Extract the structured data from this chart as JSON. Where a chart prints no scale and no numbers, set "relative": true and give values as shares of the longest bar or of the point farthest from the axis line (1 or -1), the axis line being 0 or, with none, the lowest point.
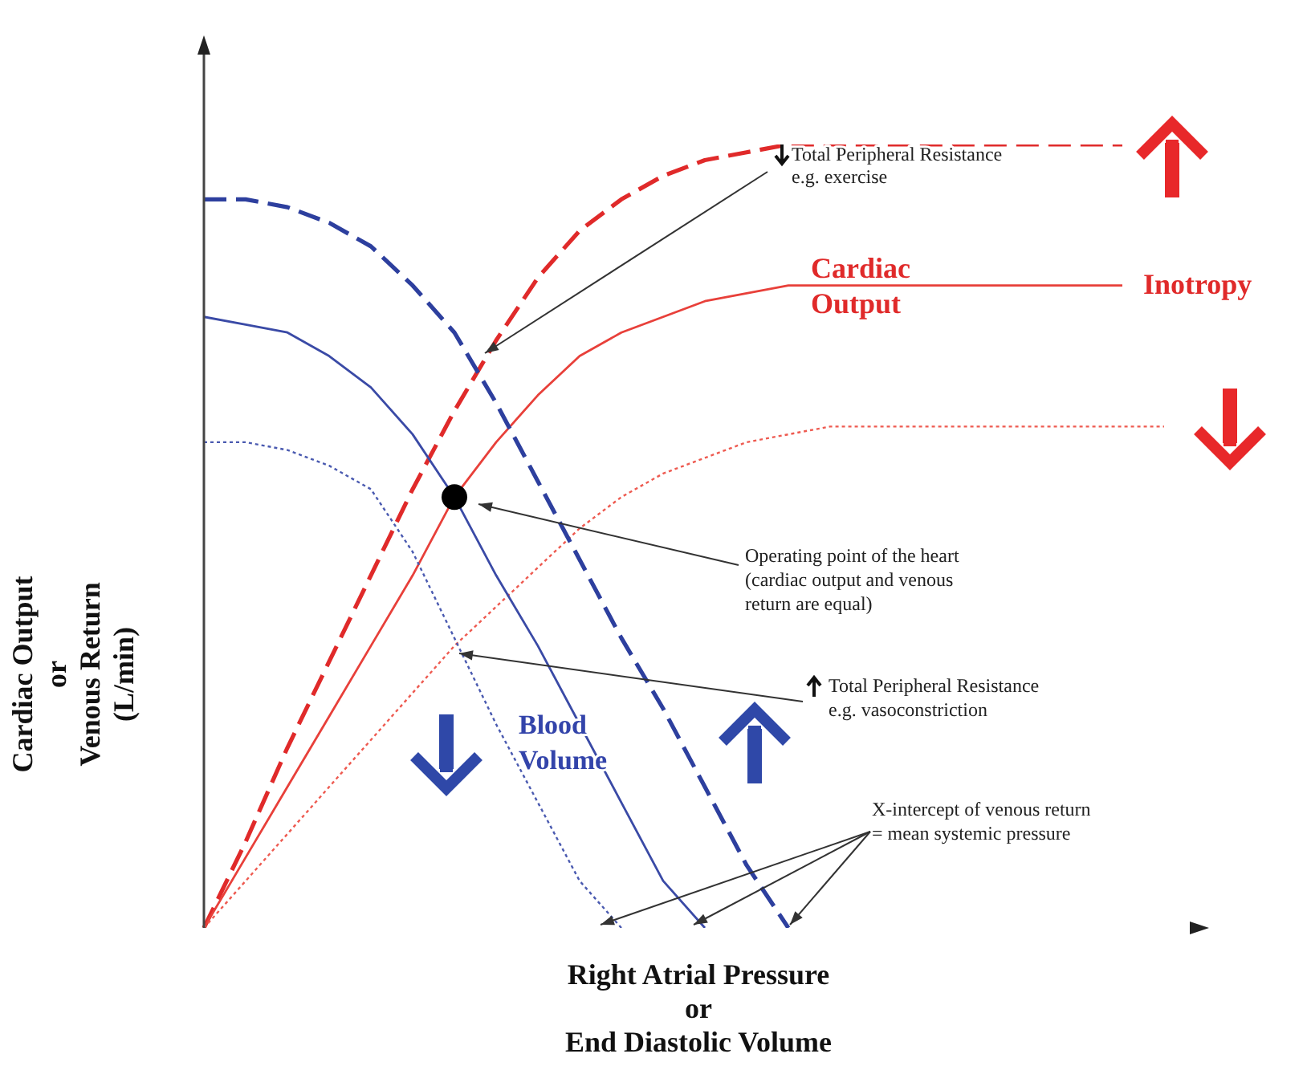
{
  "chart_data": {
    "type": "line",
    "relative": true,
    "xlabel": "Right Atrial Pressure\nor\nEnd Diastolic Volume",
    "ylabel": "Cardiac Output\nor\nVenous Return\n(L/min)",
    "categories": [
      null,
      null,
      null,
      null,
      null,
      null,
      null,
      null,
      null,
      null,
      null,
      null,
      null,
      null,
      null,
      null,
      null,
      null,
      null,
      null,
      null,
      null,
      null,
      null
    ],
    "series": [
      {
        "color": "#e02a2a",
        "line_style": "dashed",
        "values": [
          0,
          0.11,
          0.23,
          0.34,
          0.45,
          0.56,
          0.66,
          0.75,
          0.83,
          0.89,
          0.93,
          0.96,
          0.98,
          0.99,
          1,
          1,
          1,
          1,
          1,
          1,
          1,
          1,
          1,
          null
        ]
      },
      {
        "color": "#e8403a",
        "line_style": "solid",
        "values": [
          0,
          0.09,
          0.18,
          0.27,
          0.36,
          0.45,
          0.55,
          0.62,
          0.68,
          0.73,
          0.76,
          0.78,
          0.8,
          0.81,
          0.82,
          0.82,
          0.82,
          0.82,
          0.82,
          0.82,
          0.82,
          0.82,
          0.82,
          null
        ]
      },
      {
        "color": "#ee5a50",
        "line_style": "dotted",
        "values": [
          0,
          0.06,
          0.12,
          0.18,
          0.24,
          0.3,
          0.36,
          0.41,
          0.46,
          0.51,
          0.55,
          0.58,
          0.6,
          0.62,
          0.63,
          0.64,
          0.64,
          0.64,
          0.64,
          0.64,
          0.64,
          0.64,
          0.64,
          0.64
        ]
      },
      {
        "color": "#2d3f9e",
        "line_style": "dashed",
        "values": [
          0.93,
          0.93,
          0.92,
          0.9,
          0.87,
          0.82,
          0.76,
          0.67,
          0.57,
          0.47,
          0.37,
          0.28,
          0.18,
          0.08,
          0,
          null,
          null,
          null,
          null,
          null,
          null,
          null,
          null,
          null
        ]
      },
      {
        "color": "#3a4aa6",
        "line_style": "solid",
        "values": [
          0.78,
          0.77,
          0.76,
          0.73,
          0.69,
          0.63,
          0.55,
          0.45,
          0.36,
          0.26,
          0.16,
          0.06,
          0,
          null,
          null,
          null,
          null,
          null,
          null,
          null,
          null,
          null,
          null,
          null
        ]
      },
      {
        "color": "#4a5ab0",
        "line_style": "dotted",
        "values": [
          0.62,
          0.62,
          0.61,
          0.59,
          0.56,
          0.48,
          0.37,
          0.26,
          0.16,
          0.06,
          0,
          null,
          null,
          null,
          null,
          null,
          null,
          null,
          null,
          null,
          null,
          null,
          null,
          null
        ]
      }
    ],
    "annotations": [
      "Total Peripheral Resistance\ne.g. exercise",
      "Cardiac\nOutput",
      "Inotropy",
      "Operating point of the heart\n(cardiac output and venous\nreturn are equal)",
      "Total Peripheral Resistance\ne.g. vasoconstriction",
      "Blood\nVolume",
      "X-intercept of venous return\n= mean systemic pressure"
    ]
  }
}
